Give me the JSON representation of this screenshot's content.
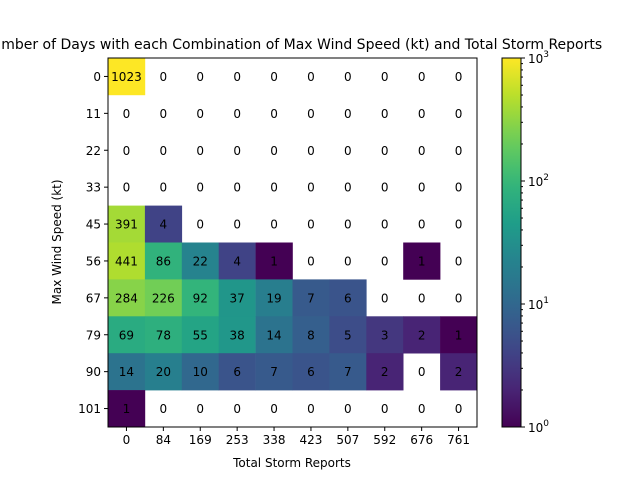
{
  "chart_data": {
    "type": "heatmap",
    "title": "Number of Days with each Combination of Max Wind Speed (kt) and Total Storm Reports",
    "xlabel": "Total Storm Reports",
    "ylabel": "Max Wind Speed (kt)",
    "x_categories": [
      "0",
      "84",
      "169",
      "253",
      "338",
      "423",
      "507",
      "592",
      "676",
      "761"
    ],
    "y_categories": [
      "0",
      "11",
      "22",
      "33",
      "45",
      "56",
      "67",
      "79",
      "90",
      "101"
    ],
    "values": [
      [
        1023,
        0,
        0,
        0,
        0,
        0,
        0,
        0,
        0,
        0
      ],
      [
        0,
        0,
        0,
        0,
        0,
        0,
        0,
        0,
        0,
        0
      ],
      [
        0,
        0,
        0,
        0,
        0,
        0,
        0,
        0,
        0,
        0
      ],
      [
        0,
        0,
        0,
        0,
        0,
        0,
        0,
        0,
        0,
        0
      ],
      [
        391,
        4,
        0,
        0,
        0,
        0,
        0,
        0,
        0,
        0
      ],
      [
        441,
        86,
        22,
        4,
        1,
        0,
        0,
        0,
        1,
        0
      ],
      [
        284,
        226,
        92,
        37,
        19,
        7,
        6,
        0,
        0,
        0
      ],
      [
        69,
        78,
        55,
        38,
        14,
        8,
        5,
        3,
        2,
        1
      ],
      [
        14,
        20,
        10,
        6,
        7,
        6,
        7,
        2,
        0,
        2
      ],
      [
        1,
        0,
        0,
        0,
        0,
        0,
        0,
        0,
        0,
        0
      ]
    ],
    "colorbar": {
      "scale": "log",
      "colormap": "viridis",
      "range": [
        1,
        1000
      ],
      "ticks": [
        {
          "value": 1,
          "base": "10",
          "exp": "0"
        },
        {
          "value": 10,
          "base": "10",
          "exp": "1"
        },
        {
          "value": 100,
          "base": "10",
          "exp": "2"
        },
        {
          "value": 1000,
          "base": "10",
          "exp": "3"
        }
      ]
    },
    "zero_cells": "uncolored",
    "grid": false
  }
}
